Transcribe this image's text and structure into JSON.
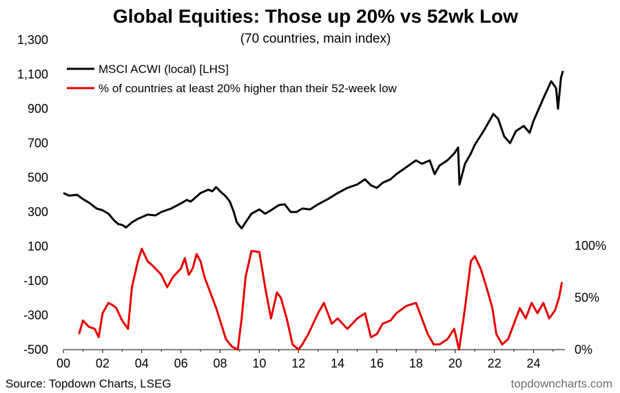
{
  "chart_data": {
    "type": "line",
    "title": "Global Equities: Those up 20% vs 52wk Low",
    "subtitle": "(70 countries, main index)",
    "source": "Source: Topdown Charts, LSEG",
    "brand": "topdowncharts.com",
    "x_ticks": [
      "00",
      "02",
      "04",
      "06",
      "08",
      "10",
      "12",
      "14",
      "16",
      "18",
      "20",
      "22",
      "24"
    ],
    "x_tick_values": [
      2000,
      2002,
      2004,
      2006,
      2008,
      2010,
      2012,
      2014,
      2016,
      2018,
      2020,
      2022,
      2024
    ],
    "xlim": [
      2000,
      2025.6
    ],
    "left_axis": {
      "ticks": [
        "1,300",
        "1,100",
        "900",
        "700",
        "500",
        "300",
        "100",
        "-100",
        "-300",
        "-500"
      ],
      "tick_values": [
        1300,
        1100,
        900,
        700,
        500,
        300,
        100,
        -100,
        -300,
        -500
      ],
      "ylim": [
        -500,
        1300
      ]
    },
    "right_axis": {
      "ticks": [
        "100%",
        "50%",
        "0%"
      ],
      "tick_values": [
        100,
        50,
        0
      ],
      "ylim": [
        0,
        100
      ]
    },
    "legend_position": "top-left",
    "series": [
      {
        "name": "MSCI ACWI (local) [LHS]",
        "color": "#000000",
        "axis": "left",
        "points": [
          [
            2000.0,
            410
          ],
          [
            2000.3,
            395
          ],
          [
            2000.7,
            400
          ],
          [
            2001.0,
            375
          ],
          [
            2001.3,
            355
          ],
          [
            2001.7,
            320
          ],
          [
            2002.0,
            310
          ],
          [
            2002.3,
            290
          ],
          [
            2002.6,
            250
          ],
          [
            2002.8,
            230
          ],
          [
            2003.0,
            225
          ],
          [
            2003.2,
            210
          ],
          [
            2003.5,
            240
          ],
          [
            2003.8,
            260
          ],
          [
            2004.0,
            270
          ],
          [
            2004.3,
            285
          ],
          [
            2004.7,
            280
          ],
          [
            2005.0,
            300
          ],
          [
            2005.5,
            320
          ],
          [
            2006.0,
            350
          ],
          [
            2006.3,
            370
          ],
          [
            2006.5,
            360
          ],
          [
            2006.8,
            390
          ],
          [
            2007.0,
            410
          ],
          [
            2007.4,
            430
          ],
          [
            2007.6,
            420
          ],
          [
            2007.8,
            445
          ],
          [
            2008.0,
            420
          ],
          [
            2008.3,
            390
          ],
          [
            2008.5,
            360
          ],
          [
            2008.7,
            300
          ],
          [
            2008.85,
            240
          ],
          [
            2009.1,
            205
          ],
          [
            2009.3,
            240
          ],
          [
            2009.6,
            290
          ],
          [
            2010.0,
            315
          ],
          [
            2010.3,
            290
          ],
          [
            2010.6,
            310
          ],
          [
            2011.0,
            340
          ],
          [
            2011.3,
            345
          ],
          [
            2011.6,
            300
          ],
          [
            2011.9,
            300
          ],
          [
            2012.2,
            320
          ],
          [
            2012.6,
            315
          ],
          [
            2013.0,
            345
          ],
          [
            2013.5,
            375
          ],
          [
            2014.0,
            410
          ],
          [
            2014.5,
            440
          ],
          [
            2015.0,
            460
          ],
          [
            2015.4,
            490
          ],
          [
            2015.7,
            455
          ],
          [
            2016.0,
            440
          ],
          [
            2016.3,
            470
          ],
          [
            2016.7,
            490
          ],
          [
            2017.0,
            520
          ],
          [
            2017.5,
            560
          ],
          [
            2018.0,
            600
          ],
          [
            2018.3,
            580
          ],
          [
            2018.7,
            600
          ],
          [
            2018.95,
            520
          ],
          [
            2019.2,
            570
          ],
          [
            2019.6,
            600
          ],
          [
            2019.95,
            640
          ],
          [
            2020.15,
            675
          ],
          [
            2020.22,
            460
          ],
          [
            2020.5,
            580
          ],
          [
            2020.8,
            640
          ],
          [
            2021.0,
            690
          ],
          [
            2021.5,
            780
          ],
          [
            2021.95,
            870
          ],
          [
            2022.2,
            840
          ],
          [
            2022.5,
            740
          ],
          [
            2022.8,
            700
          ],
          [
            2023.1,
            770
          ],
          [
            2023.5,
            800
          ],
          [
            2023.8,
            760
          ],
          [
            2024.0,
            830
          ],
          [
            2024.5,
            960
          ],
          [
            2024.9,
            1060
          ],
          [
            2025.15,
            1020
          ],
          [
            2025.25,
            900
          ],
          [
            2025.4,
            1080
          ],
          [
            2025.5,
            1120
          ]
        ]
      },
      {
        "name": "% of countries at least 20% higher than their 52-week low",
        "color": "#e60000",
        "axis": "right",
        "points": [
          [
            2000.8,
            15
          ],
          [
            2001.0,
            28
          ],
          [
            2001.3,
            22
          ],
          [
            2001.6,
            20
          ],
          [
            2001.8,
            12
          ],
          [
            2002.0,
            35
          ],
          [
            2002.3,
            45
          ],
          [
            2002.5,
            43
          ],
          [
            2002.7,
            40
          ],
          [
            2003.0,
            28
          ],
          [
            2003.3,
            20
          ],
          [
            2003.5,
            60
          ],
          [
            2003.8,
            85
          ],
          [
            2004.0,
            97
          ],
          [
            2004.3,
            85
          ],
          [
            2004.6,
            80
          ],
          [
            2005.0,
            72
          ],
          [
            2005.3,
            60
          ],
          [
            2005.6,
            70
          ],
          [
            2006.0,
            78
          ],
          [
            2006.2,
            88
          ],
          [
            2006.4,
            72
          ],
          [
            2006.6,
            78
          ],
          [
            2006.8,
            92
          ],
          [
            2007.0,
            85
          ],
          [
            2007.2,
            70
          ],
          [
            2007.5,
            55
          ],
          [
            2007.8,
            40
          ],
          [
            2008.0,
            28
          ],
          [
            2008.3,
            10
          ],
          [
            2008.6,
            3
          ],
          [
            2008.9,
            0
          ],
          [
            2009.1,
            30
          ],
          [
            2009.3,
            70
          ],
          [
            2009.6,
            95
          ],
          [
            2010.0,
            94
          ],
          [
            2010.3,
            60
          ],
          [
            2010.6,
            30
          ],
          [
            2010.9,
            55
          ],
          [
            2011.1,
            50
          ],
          [
            2011.4,
            30
          ],
          [
            2011.7,
            5
          ],
          [
            2012.0,
            0
          ],
          [
            2012.2,
            5
          ],
          [
            2012.5,
            15
          ],
          [
            2013.0,
            35
          ],
          [
            2013.3,
            45
          ],
          [
            2013.7,
            25
          ],
          [
            2014.0,
            30
          ],
          [
            2014.5,
            20
          ],
          [
            2015.0,
            30
          ],
          [
            2015.4,
            35
          ],
          [
            2015.7,
            12
          ],
          [
            2016.0,
            15
          ],
          [
            2016.3,
            25
          ],
          [
            2016.7,
            28
          ],
          [
            2017.0,
            35
          ],
          [
            2017.5,
            42
          ],
          [
            2018.0,
            45
          ],
          [
            2018.3,
            30
          ],
          [
            2018.6,
            15
          ],
          [
            2018.9,
            5
          ],
          [
            2019.2,
            5
          ],
          [
            2019.6,
            10
          ],
          [
            2019.95,
            20
          ],
          [
            2020.2,
            0
          ],
          [
            2020.5,
            40
          ],
          [
            2020.8,
            85
          ],
          [
            2021.0,
            90
          ],
          [
            2021.3,
            78
          ],
          [
            2021.6,
            60
          ],
          [
            2021.9,
            40
          ],
          [
            2022.1,
            15
          ],
          [
            2022.4,
            5
          ],
          [
            2022.7,
            10
          ],
          [
            2023.0,
            25
          ],
          [
            2023.3,
            40
          ],
          [
            2023.6,
            30
          ],
          [
            2023.9,
            45
          ],
          [
            2024.2,
            35
          ],
          [
            2024.5,
            45
          ],
          [
            2024.8,
            30
          ],
          [
            2025.1,
            38
          ],
          [
            2025.3,
            50
          ],
          [
            2025.45,
            65
          ]
        ]
      }
    ]
  }
}
